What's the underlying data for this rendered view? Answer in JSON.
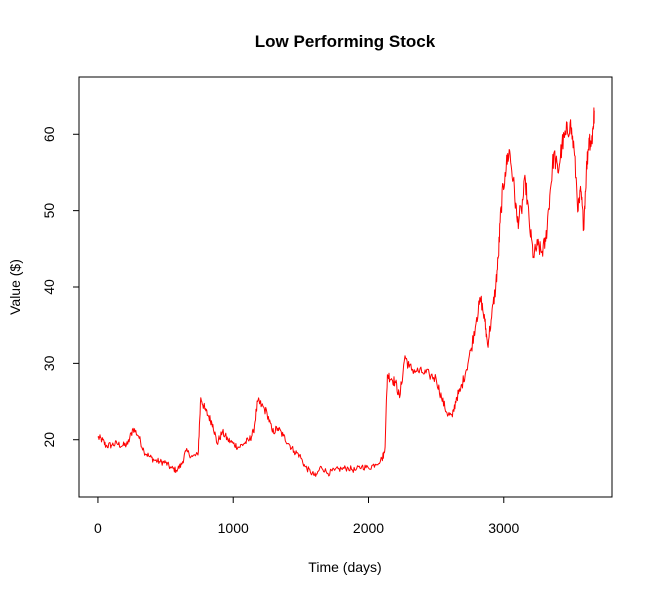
{
  "chart_data": {
    "type": "line",
    "title": "Low Performing Stock",
    "xlabel": "Time (days)",
    "ylabel": "Value ($)",
    "xlim": [
      -140,
      3800
    ],
    "ylim": [
      12.5,
      67.5
    ],
    "x_ticks": [
      0,
      1000,
      2000,
      3000
    ],
    "y_ticks": [
      20,
      30,
      40,
      50,
      60
    ],
    "grid": false,
    "legend": "none",
    "series": [
      {
        "color": "#ff0000",
        "points": [
          [
            0,
            20.3
          ],
          [
            30,
            20.0
          ],
          [
            60,
            19.2
          ],
          [
            100,
            19.3
          ],
          [
            140,
            19.5
          ],
          [
            180,
            19.2
          ],
          [
            220,
            19.4
          ],
          [
            260,
            21.5
          ],
          [
            300,
            20.5
          ],
          [
            340,
            18.5
          ],
          [
            380,
            17.8
          ],
          [
            420,
            17.3
          ],
          [
            460,
            17.1
          ],
          [
            500,
            17.0
          ],
          [
            540,
            16.3
          ],
          [
            580,
            16.0
          ],
          [
            620,
            16.8
          ],
          [
            650,
            18.5
          ],
          [
            700,
            17.8
          ],
          [
            740,
            18.0
          ],
          [
            760,
            25.5
          ],
          [
            790,
            24.0
          ],
          [
            820,
            23.0
          ],
          [
            850,
            22.0
          ],
          [
            880,
            19.5
          ],
          [
            920,
            21.0
          ],
          [
            960,
            20.0
          ],
          [
            1000,
            19.5
          ],
          [
            1040,
            19.0
          ],
          [
            1080,
            19.5
          ],
          [
            1120,
            20.0
          ],
          [
            1150,
            21.0
          ],
          [
            1180,
            25.0
          ],
          [
            1210,
            24.5
          ],
          [
            1250,
            23.5
          ],
          [
            1290,
            21.0
          ],
          [
            1330,
            21.5
          ],
          [
            1370,
            20.5
          ],
          [
            1410,
            19.5
          ],
          [
            1450,
            18.5
          ],
          [
            1490,
            18.0
          ],
          [
            1530,
            16.5
          ],
          [
            1570,
            15.8
          ],
          [
            1610,
            15.2
          ],
          [
            1650,
            16.5
          ],
          [
            1700,
            15.6
          ],
          [
            1750,
            16.0
          ],
          [
            1800,
            16.2
          ],
          [
            1850,
            16.3
          ],
          [
            1900,
            16.0
          ],
          [
            1950,
            16.5
          ],
          [
            2000,
            16.3
          ],
          [
            2050,
            16.8
          ],
          [
            2100,
            17.5
          ],
          [
            2120,
            18.5
          ],
          [
            2140,
            28.5
          ],
          [
            2170,
            28.0
          ],
          [
            2200,
            27.5
          ],
          [
            2230,
            25.5
          ],
          [
            2270,
            31.0
          ],
          [
            2300,
            29.5
          ],
          [
            2350,
            29.0
          ],
          [
            2400,
            28.8
          ],
          [
            2450,
            28.5
          ],
          [
            2500,
            28.0
          ],
          [
            2540,
            25.5
          ],
          [
            2580,
            23.5
          ],
          [
            2620,
            23.0
          ],
          [
            2650,
            25.5
          ],
          [
            2680,
            26.5
          ],
          [
            2720,
            29.0
          ],
          [
            2760,
            32.0
          ],
          [
            2800,
            36.0
          ],
          [
            2830,
            38.5
          ],
          [
            2860,
            35.5
          ],
          [
            2880,
            32.5
          ],
          [
            2910,
            36.0
          ],
          [
            2940,
            40.0
          ],
          [
            2960,
            44.0
          ],
          [
            2980,
            50.5
          ],
          [
            3010,
            55.0
          ],
          [
            3040,
            58.0
          ],
          [
            3070,
            54.0
          ],
          [
            3100,
            48.5
          ],
          [
            3130,
            50.0
          ],
          [
            3160,
            54.0
          ],
          [
            3190,
            48.0
          ],
          [
            3220,
            44.0
          ],
          [
            3250,
            45.5
          ],
          [
            3280,
            44.5
          ],
          [
            3310,
            46.0
          ],
          [
            3340,
            52.0
          ],
          [
            3370,
            57.5
          ],
          [
            3400,
            55.0
          ],
          [
            3430,
            58.5
          ],
          [
            3460,
            60.0
          ],
          [
            3490,
            61.5
          ],
          [
            3520,
            58.0
          ],
          [
            3550,
            50.0
          ],
          [
            3570,
            52.5
          ],
          [
            3590,
            48.0
          ],
          [
            3610,
            55.0
          ],
          [
            3630,
            59.5
          ],
          [
            3650,
            59.0
          ],
          [
            3660,
            61.0
          ],
          [
            3670,
            63.0
          ]
        ]
      }
    ]
  }
}
